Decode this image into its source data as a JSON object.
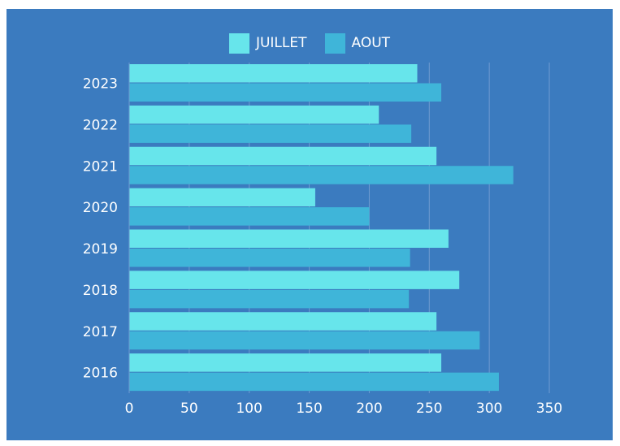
{
  "colors": {
    "background": "#3b7bbf",
    "juillet": "#67e5eb",
    "aout": "#3fb5d9",
    "grid": "#6f9bd0",
    "text": "#ffffff"
  },
  "chart_data": {
    "type": "bar",
    "orientation": "horizontal",
    "categories": [
      "2023",
      "2022",
      "2021",
      "2020",
      "2019",
      "2018",
      "2017",
      "2016"
    ],
    "series": [
      {
        "name": "JUILLET",
        "values": [
          240,
          208,
          256,
          155,
          266,
          275,
          256,
          260
        ]
      },
      {
        "name": "AOUT",
        "values": [
          260,
          235,
          320,
          200,
          234,
          233,
          292,
          308
        ]
      }
    ],
    "xlim": [
      0,
      350
    ],
    "xticks": [
      0,
      50,
      100,
      150,
      200,
      250,
      300,
      350
    ],
    "legend_position": "top-center",
    "grid": true,
    "title": "",
    "xlabel": "",
    "ylabel": ""
  }
}
